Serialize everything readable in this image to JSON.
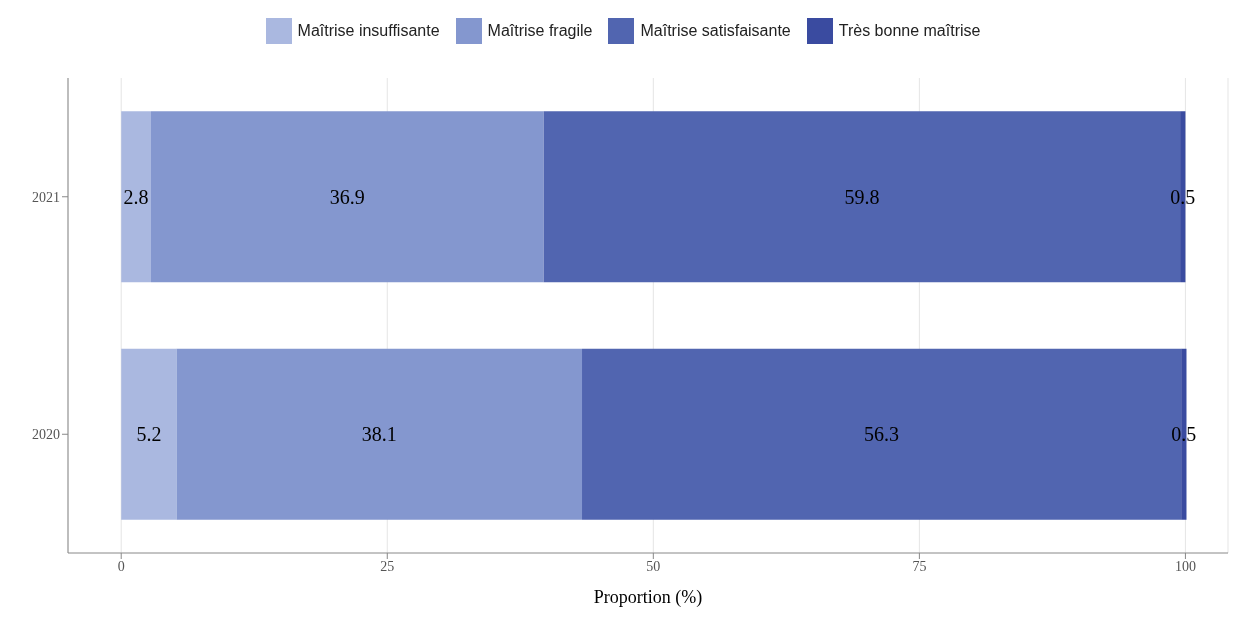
{
  "chart_data": {
    "type": "bar",
    "orientation": "horizontal",
    "stacked": true,
    "categories": [
      "2021",
      "2020"
    ],
    "series": [
      {
        "name": "Maîtrise insuffisante",
        "color": "#aab8e0",
        "values": [
          2.8,
          5.2
        ]
      },
      {
        "name": "Maîtrise fragile",
        "color": "#8497cf",
        "values": [
          36.9,
          38.1
        ]
      },
      {
        "name": "Maîtrise satisfaisante",
        "color": "#5165b0",
        "values": [
          59.8,
          56.3
        ]
      },
      {
        "name": "Très bonne maîtrise",
        "color": "#3a4ba0",
        "values": [
          0.5,
          0.5
        ]
      }
    ],
    "xlabel": "Proportion (%)",
    "xlim": [
      -5,
      104
    ],
    "xticks": [
      0,
      25,
      50,
      75,
      100
    ],
    "grid": true,
    "legend": "top",
    "data_labels": true
  }
}
